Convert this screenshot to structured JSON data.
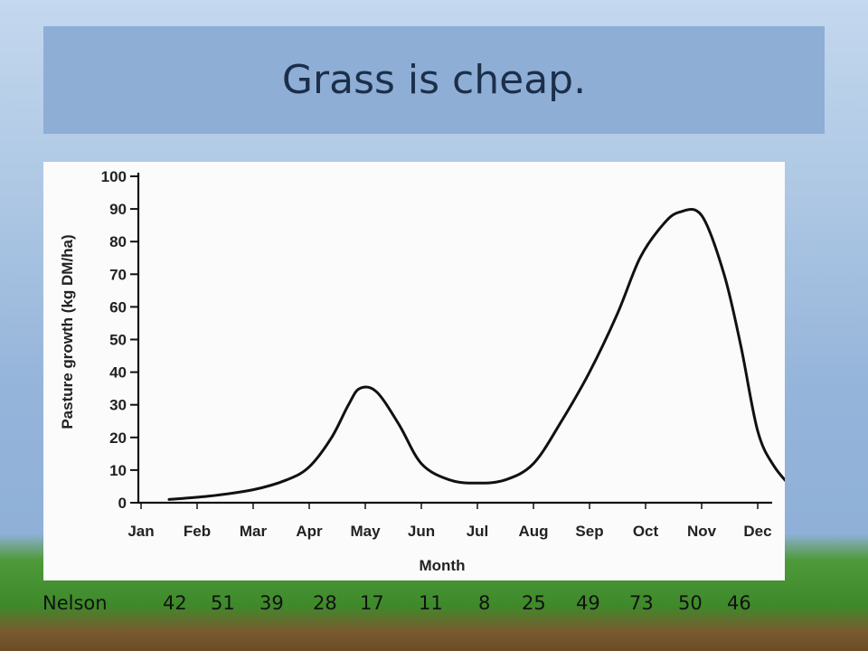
{
  "title": "Grass is cheap.",
  "chart_data": {
    "type": "line",
    "title": "",
    "xlabel": "Month",
    "ylabel": "Pasture growth (kg DM/ha)",
    "categories": [
      "Jan",
      "Feb",
      "Mar",
      "Apr",
      "May",
      "Jun",
      "Jul",
      "Aug",
      "Sep",
      "Oct",
      "Nov",
      "Dec"
    ],
    "yticks": [
      "0",
      "10",
      "20",
      "30",
      "40",
      "50",
      "60",
      "70",
      "80",
      "90",
      "100"
    ],
    "ylim": [
      0,
      100
    ],
    "grid": false,
    "series": [
      {
        "values": [
          0,
          0,
          4,
          10,
          35,
          9,
          6,
          13,
          40,
          85,
          87,
          20
        ],
        "points": [
          [
            0.5,
            1
          ],
          [
            1.2,
            2
          ],
          [
            2,
            4
          ],
          [
            2.6,
            7
          ],
          [
            3,
            11
          ],
          [
            3.4,
            20
          ],
          [
            3.7,
            30
          ],
          [
            3.9,
            35
          ],
          [
            4.2,
            34
          ],
          [
            4.6,
            24
          ],
          [
            5,
            12
          ],
          [
            5.5,
            7
          ],
          [
            6,
            6
          ],
          [
            6.5,
            7
          ],
          [
            7,
            12
          ],
          [
            7.5,
            25
          ],
          [
            8,
            40
          ],
          [
            8.5,
            58
          ],
          [
            8.9,
            75
          ],
          [
            9.3,
            85
          ],
          [
            9.6,
            89
          ],
          [
            10,
            88
          ],
          [
            10.4,
            70
          ],
          [
            10.7,
            48
          ],
          [
            11,
            22
          ],
          [
            11.3,
            11
          ],
          [
            11.7,
            3
          ]
        ],
        "color": "#111111"
      }
    ]
  },
  "nelson": {
    "label": "Nelson",
    "values": [
      "42",
      "51",
      "39",
      "28",
      "17",
      "11",
      "8",
      "25",
      "49",
      "73",
      "50",
      "46"
    ]
  }
}
